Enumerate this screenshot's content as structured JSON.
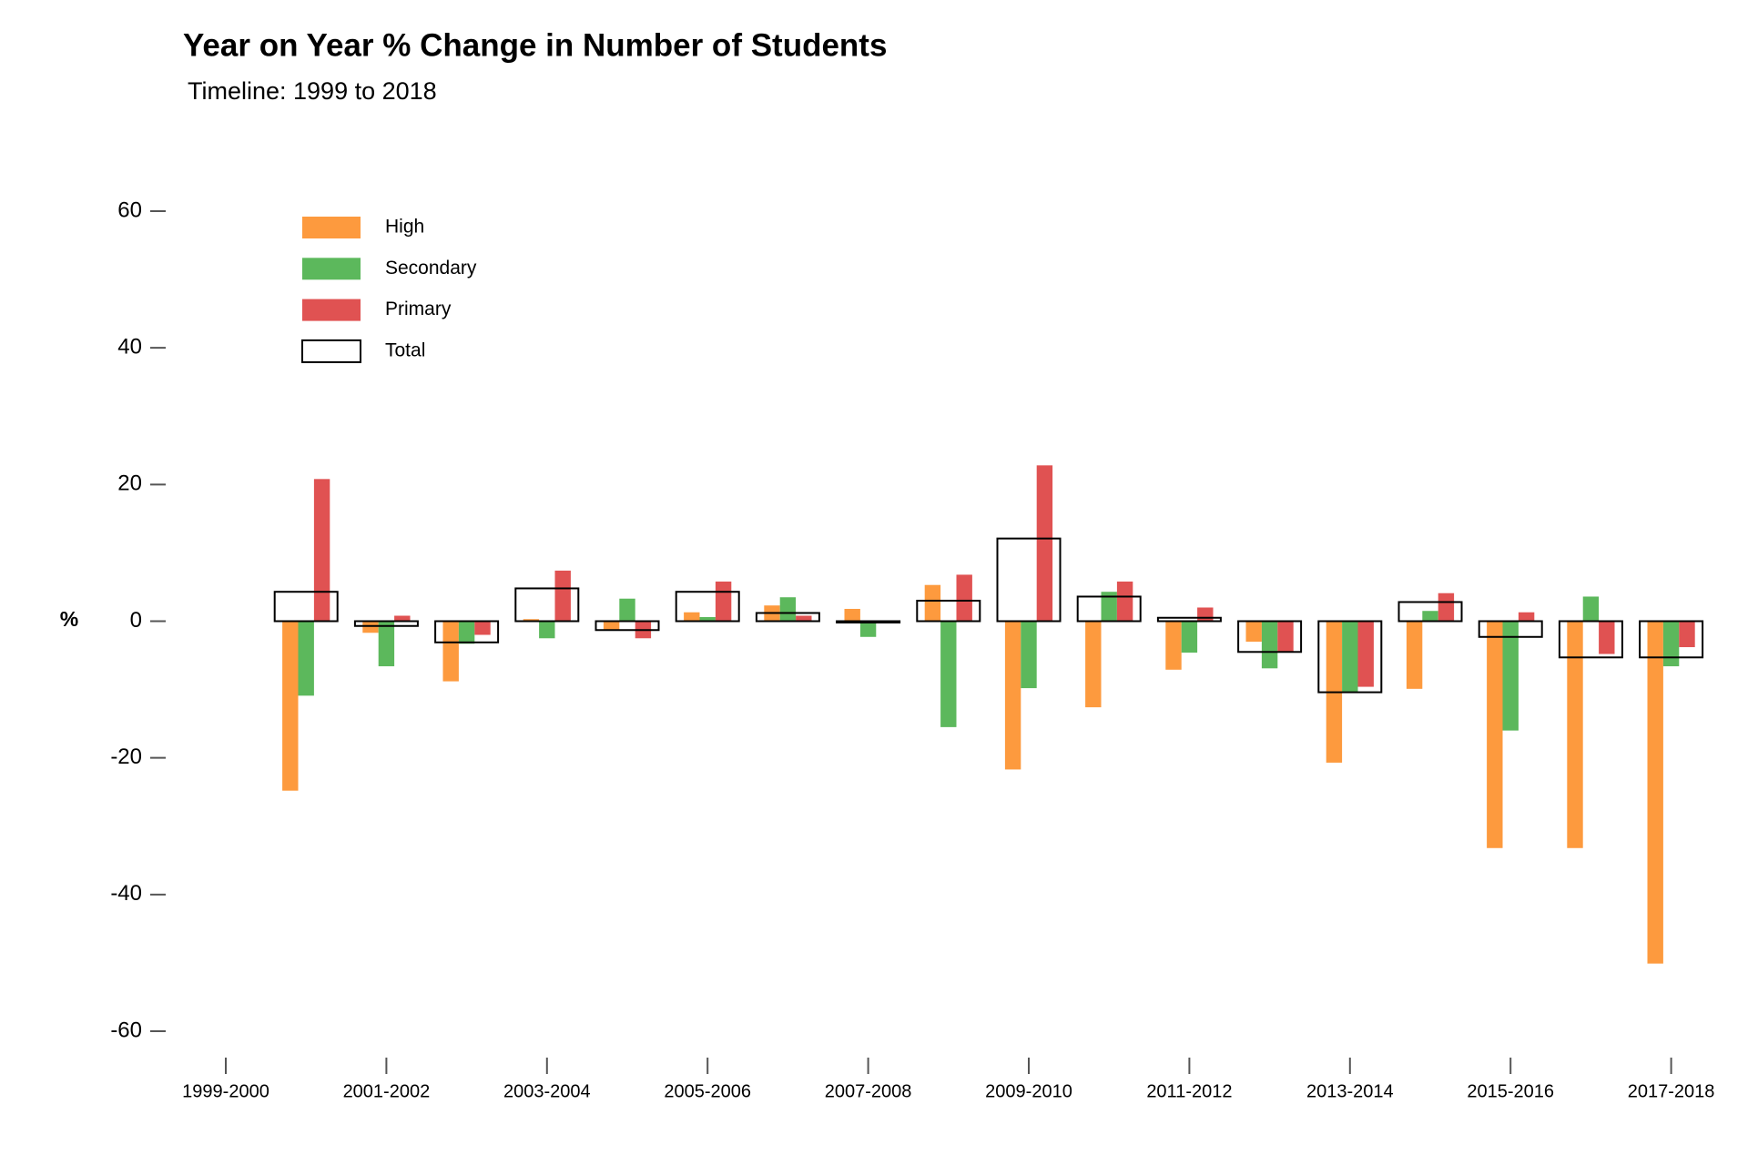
{
  "chart_data": {
    "type": "bar",
    "title": "Year on Year % Change in Number of Students",
    "subtitle": "Timeline: 1999 to 2018",
    "y_label": "%",
    "categories": [
      "1999-2000",
      null,
      "2001-2002",
      null,
      "2003-2004",
      null,
      "2005-2006",
      null,
      "2007-2008",
      null,
      "2009-2010",
      null,
      "2011-2012",
      null,
      "2013-2014",
      null,
      "2015-2016",
      null,
      "2017-2018"
    ],
    "series": [
      {
        "name": "High",
        "color": "#fd9a3e",
        "values": [
          null,
          -24.8,
          -1.7,
          -8.8,
          0.3,
          -1.2,
          1.3,
          2.3,
          1.8,
          5.3,
          -21.7,
          -12.6,
          -7.1,
          -3.0,
          -20.7,
          -9.9,
          -33.2,
          -33.2,
          -50.1
        ]
      },
      {
        "name": "Secondary",
        "color": "#5cb85c",
        "values": [
          null,
          -10.9,
          -6.6,
          -3.3,
          -2.5,
          3.3,
          0.6,
          3.5,
          -2.3,
          -15.5,
          -9.8,
          4.3,
          -4.6,
          -6.9,
          -10.4,
          1.5,
          -16.0,
          3.6,
          -6.6
        ]
      },
      {
        "name": "Primary",
        "color": "#e05252",
        "values": [
          null,
          20.8,
          0.8,
          -2.0,
          7.4,
          -2.5,
          5.8,
          0.8,
          0.1,
          6.8,
          22.8,
          5.8,
          2.0,
          -4.5,
          -9.6,
          4.1,
          1.3,
          -4.8,
          -3.8
        ]
      },
      {
        "name": "Total",
        "color": "#000000",
        "outline": true,
        "values": [
          null,
          4.3,
          -0.7,
          -3.1,
          4.8,
          -1.3,
          4.3,
          1.2,
          -0.2,
          3.0,
          12.1,
          3.6,
          0.5,
          -4.5,
          -10.4,
          2.8,
          -2.3,
          -5.3,
          -5.3
        ]
      }
    ],
    "ylim": [
      -60,
      60
    ],
    "yticks": [
      -60,
      -40,
      -20,
      0,
      20,
      40,
      60
    ],
    "grid": false,
    "legend": "top-left"
  }
}
